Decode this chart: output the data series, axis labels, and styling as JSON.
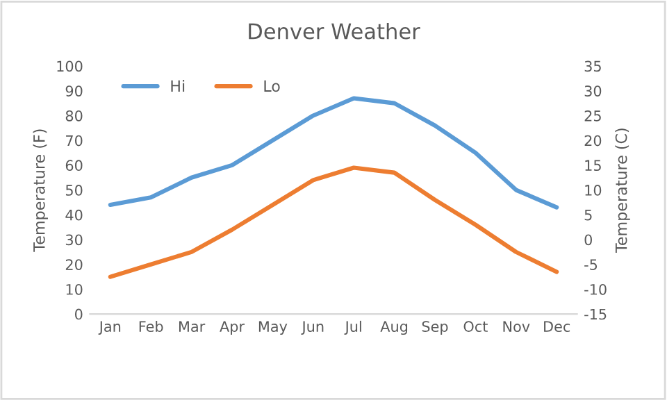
{
  "chart_data": {
    "type": "line",
    "title": "Denver Weather",
    "ylabel": "Temperature (F)",
    "y2label": "Temperature (C)",
    "categories": [
      "Jan",
      "Feb",
      "Mar",
      "Apr",
      "May",
      "Jun",
      "Jul",
      "Aug",
      "Sep",
      "Oct",
      "Nov",
      "Dec"
    ],
    "series": [
      {
        "name": "Hi",
        "color": "#5b9bd5",
        "values": [
          44,
          47,
          55,
          60,
          70,
          80,
          87,
          85,
          76,
          65,
          50,
          43
        ]
      },
      {
        "name": "Lo",
        "color": "#ed7d31",
        "values": [
          15,
          20,
          25,
          34,
          44,
          54,
          59,
          57,
          46,
          36,
          25,
          17
        ]
      }
    ],
    "ylim": [
      0,
      100
    ],
    "yticks": [
      0,
      10,
      20,
      30,
      40,
      50,
      60,
      70,
      80,
      90,
      100
    ],
    "y2lim": [
      -15,
      35
    ],
    "y2ticks": [
      -15,
      -10,
      -5,
      0,
      5,
      10,
      15,
      20,
      25,
      30,
      35
    ],
    "legend": "top left",
    "grid": false,
    "marker": "none",
    "line_style": "solid"
  }
}
